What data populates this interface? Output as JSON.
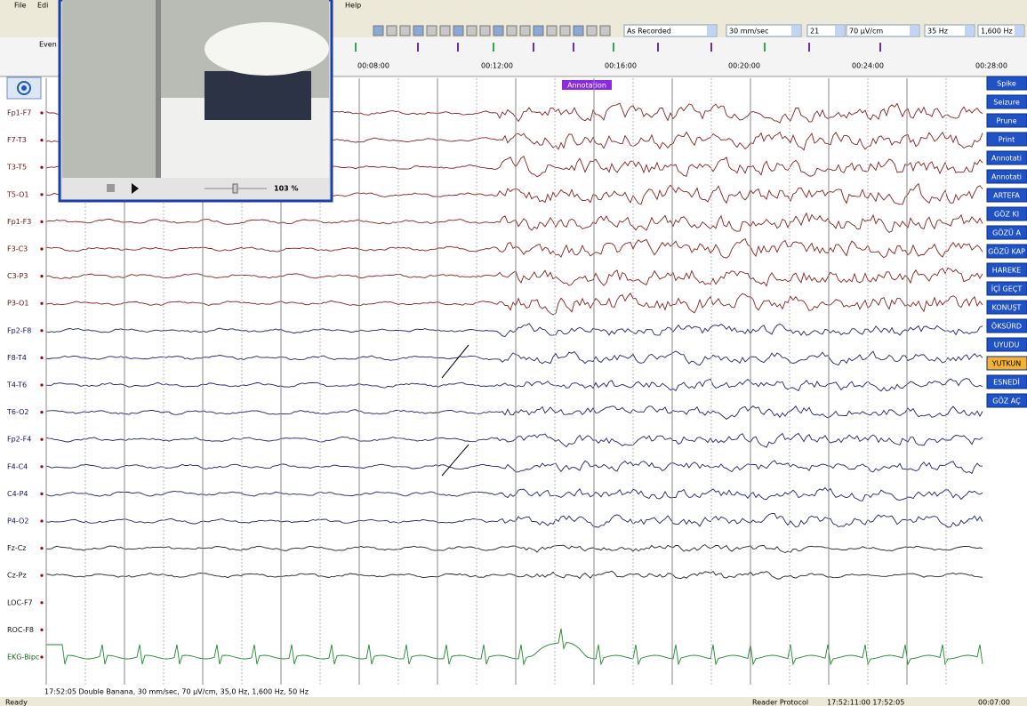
{
  "menu": {
    "items": [
      "File",
      "Edi",
      "Help"
    ]
  },
  "toolbar": {
    "dropdowns": [
      "As Recorded",
      "30 mm/sec",
      "21",
      "70 µV/cm",
      "35 Hz",
      "1,600 Hz"
    ]
  },
  "timeline": {
    "label": "Even",
    "times": [
      "00:08:00",
      "00:12:00",
      "00:16:00",
      "00:20:00",
      "00:24:00",
      "00:28:00"
    ],
    "annotation": "Annotation"
  },
  "channels": [
    "Fp1-F7",
    "F7-T3",
    "T3-T5",
    "T5-O1",
    "Fp1-F3",
    "F3-C3",
    "C3-P3",
    "P3-O1",
    "Fp2-F8",
    "F8-T4",
    "T4-T6",
    "T6-O2",
    "Fp2-F4",
    "F4-C4",
    "C4-P4",
    "P4-O2",
    "Fz-Cz",
    "Cz-Pz",
    "LOC-F7",
    "ROC-F8",
    "EKG-Bipc"
  ],
  "buttons": [
    "Spike",
    "Seizure",
    "Prune",
    "Print",
    "Annotati",
    "Annotati",
    "ARTEFA",
    "GÖZ KI",
    "GÖZÜ A",
    "GÖZÜ KAP",
    "HAREKE",
    "İÇİ GEÇT",
    "KONUŞT",
    "ÖKSÜRD",
    "UYUDU",
    "YUTKUN",
    "ESNEDİ",
    "GÖZ AÇ"
  ],
  "video": {
    "zoom": "103 %"
  },
  "footer": "17:52:05 Double Banana, 30 mm/sec, 70 µV/cm, 35,0 Hz, 1,600 Hz, 50 Hz",
  "status": {
    "left": "Ready",
    "protocol": "Reader Protocol",
    "clock": "17:52:11:00  17:52:05",
    "elapsed": "00:07:00"
  }
}
